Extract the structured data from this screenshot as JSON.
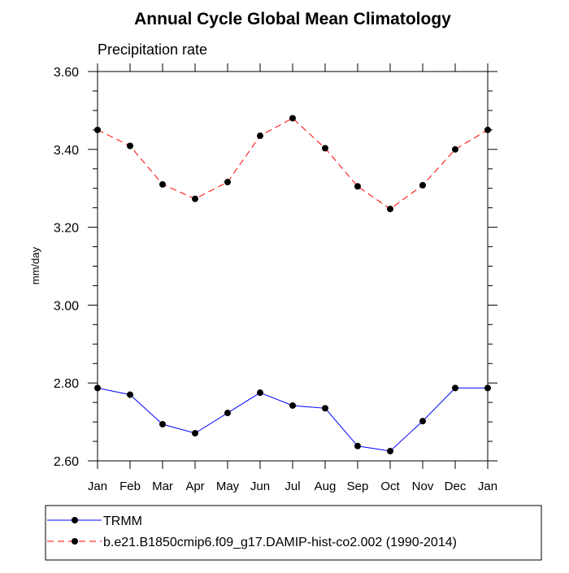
{
  "chart_data": {
    "type": "line",
    "title": "Annual Cycle Global Mean Climatology",
    "subtitle": "Precipitation rate",
    "xlabel": "",
    "ylabel": "mm/day",
    "categories": [
      "Jan",
      "Feb",
      "Mar",
      "Apr",
      "May",
      "Jun",
      "Jul",
      "Aug",
      "Sep",
      "Oct",
      "Nov",
      "Dec",
      "Jan"
    ],
    "ylim": [
      2.6,
      3.6
    ],
    "yticks": [
      2.6,
      2.8,
      3.0,
      3.2,
      3.4,
      3.6
    ],
    "ytick_labels": [
      "2.60",
      "2.80",
      "3.00",
      "3.20",
      "3.40",
      "3.60"
    ],
    "grid": false,
    "legend_position": "bottom",
    "series": [
      {
        "name": "TRMM",
        "color": "#0000ff",
        "line_style": "solid",
        "marker": "filled-circle",
        "values": [
          2.787,
          2.77,
          2.694,
          2.671,
          2.723,
          2.775,
          2.742,
          2.735,
          2.638,
          2.625,
          2.702,
          2.787,
          2.787
        ]
      },
      {
        "name": "b.e21.B1850cmip6.f09_g17.DAMIP-hist-co2.002 (1990-2014)",
        "color": "#ff0000",
        "line_style": "dashed",
        "marker": "filled-circle",
        "values": [
          3.45,
          3.409,
          3.31,
          3.273,
          3.316,
          3.435,
          3.48,
          3.403,
          3.305,
          3.247,
          3.308,
          3.4,
          3.45
        ]
      }
    ]
  }
}
